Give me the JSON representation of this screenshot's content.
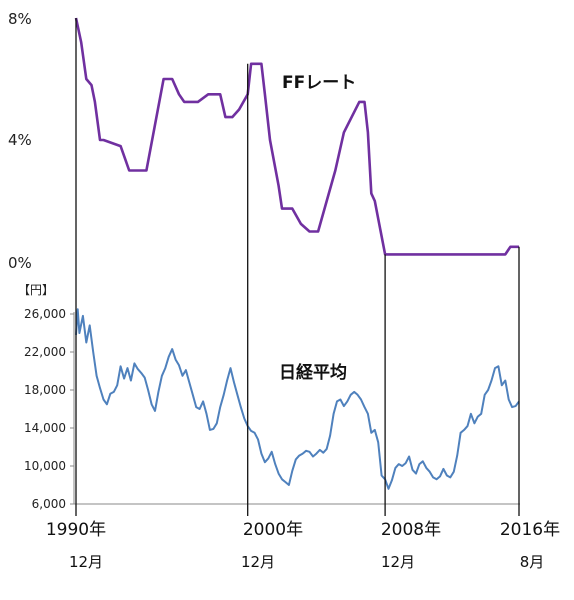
{
  "chart_data": [
    {
      "type": "line",
      "title": "",
      "series_label": "FFレート",
      "y_unit": "%",
      "ylim": [
        0,
        8
      ],
      "yticks": [
        "8%",
        "4%",
        "0%"
      ],
      "ytick_values": [
        8,
        4,
        0
      ],
      "grid": false,
      "color": "#7030a0",
      "series": [
        {
          "x": [
            1990.9,
            1991.2,
            1991.5,
            1991.8,
            1992.0,
            1992.3,
            1992.5,
            1993.5,
            1994.0,
            1994.5,
            1995.0,
            1995.5,
            1996.0,
            1996.5,
            1996.9,
            1997.2,
            1998.0,
            1998.6,
            1998.9,
            1999.3,
            1999.6,
            2000.0,
            2000.4,
            2000.9,
            2001.1,
            2001.4,
            2001.7,
            2001.9,
            2002.2,
            2002.7,
            2002.9,
            2003.5,
            2004.0,
            2004.5,
            2005.0,
            2005.5,
            2006.0,
            2006.5,
            2007.4,
            2007.7,
            2007.9,
            2008.1,
            2008.3,
            2008.9,
            2015.9,
            2016.2,
            2016.7
          ],
          "y": [
            8.0,
            7.2,
            6.0,
            5.8,
            5.25,
            4.0,
            4.0,
            3.8,
            3.0,
            3.0,
            3.0,
            4.5,
            6.0,
            6.0,
            5.5,
            5.25,
            5.25,
            5.5,
            5.5,
            5.5,
            4.75,
            4.75,
            5.0,
            5.5,
            6.5,
            6.5,
            6.5,
            5.5,
            4.0,
            2.5,
            1.75,
            1.75,
            1.25,
            1.0,
            1.0,
            2.0,
            3.0,
            4.25,
            5.25,
            5.25,
            4.25,
            2.25,
            2.0,
            0.25,
            0.25,
            0.5,
            0.5
          ]
        }
      ]
    },
    {
      "type": "line",
      "title": "",
      "series_label": "日経平均",
      "y_unit": "【円】",
      "ylim": [
        6000,
        26000
      ],
      "yticks": [
        "26,000",
        "22,000",
        "18,000",
        "14,000",
        "10,000",
        "6,000"
      ],
      "ytick_values": [
        26000,
        22000,
        18000,
        14000,
        10000,
        6000
      ],
      "grid": false,
      "color": "#4f81bd",
      "series": [
        {
          "x": [
            1990.9,
            1991.0,
            1991.1,
            1991.3,
            1991.5,
            1991.7,
            1991.9,
            1992.1,
            1992.3,
            1992.5,
            1992.7,
            1992.9,
            1993.1,
            1993.3,
            1993.5,
            1993.7,
            1993.9,
            1994.1,
            1994.3,
            1994.5,
            1994.7,
            1994.9,
            1995.1,
            1995.3,
            1995.5,
            1995.7,
            1995.9,
            1996.1,
            1996.3,
            1996.5,
            1996.7,
            1996.9,
            1997.1,
            1997.3,
            1997.5,
            1997.7,
            1997.9,
            1998.1,
            1998.3,
            1998.5,
            1998.7,
            1998.9,
            1999.1,
            1999.3,
            1999.5,
            1999.7,
            1999.9,
            2000.1,
            2000.3,
            2000.5,
            2000.7,
            2000.9,
            2001.1,
            2001.3,
            2001.5,
            2001.7,
            2001.9,
            2002.1,
            2002.3,
            2002.5,
            2002.7,
            2002.9,
            2003.1,
            2003.3,
            2003.5,
            2003.7,
            2003.9,
            2004.1,
            2004.3,
            2004.5,
            2004.7,
            2004.9,
            2005.1,
            2005.3,
            2005.5,
            2005.7,
            2005.9,
            2006.1,
            2006.3,
            2006.5,
            2006.7,
            2006.9,
            2007.1,
            2007.3,
            2007.5,
            2007.7,
            2007.9,
            2008.1,
            2008.3,
            2008.5,
            2008.7,
            2008.9,
            2009.1,
            2009.3,
            2009.5,
            2009.7,
            2009.9,
            2010.1,
            2010.3,
            2010.5,
            2010.7,
            2010.9,
            2011.1,
            2011.3,
            2011.5,
            2011.7,
            2011.9,
            2012.1,
            2012.3,
            2012.5,
            2012.7,
            2012.9,
            2013.1,
            2013.3,
            2013.5,
            2013.7,
            2013.9,
            2014.1,
            2014.3,
            2014.5,
            2014.7,
            2014.9,
            2015.1,
            2015.3,
            2015.5,
            2015.7,
            2015.9,
            2016.1,
            2016.3,
            2016.5,
            2016.7
          ],
          "y": [
            23800,
            26500,
            24000,
            25800,
            23000,
            24800,
            22000,
            19500,
            18200,
            17000,
            16500,
            17600,
            17800,
            18500,
            20500,
            19200,
            20300,
            19000,
            20800,
            20200,
            19800,
            19300,
            18000,
            16500,
            15800,
            17800,
            19500,
            20300,
            21500,
            22300,
            21200,
            20600,
            19500,
            20100,
            18800,
            17500,
            16200,
            16000,
            16800,
            15500,
            13800,
            13900,
            14500,
            16200,
            17500,
            19000,
            20300,
            18800,
            17500,
            16200,
            15000,
            14200,
            13700,
            13500,
            12800,
            11300,
            10400,
            10800,
            11500,
            10200,
            9200,
            8600,
            8300,
            8000,
            9500,
            10700,
            11100,
            11300,
            11600,
            11500,
            11000,
            11300,
            11700,
            11400,
            11800,
            13200,
            15500,
            16800,
            17000,
            16300,
            16800,
            17500,
            17800,
            17500,
            17000,
            16200,
            15500,
            13500,
            13800,
            12500,
            9000,
            8600,
            7600,
            8500,
            9800,
            10200,
            10000,
            10300,
            11000,
            9600,
            9200,
            10200,
            10500,
            9800,
            9400,
            8800,
            8600,
            8900,
            9700,
            9000,
            8800,
            9400,
            11100,
            13500,
            13800,
            14200,
            15500,
            14500,
            15200,
            15500,
            17500,
            18000,
            19000,
            20300,
            20500,
            18500,
            19000,
            17000,
            16200,
            16300,
            16800
          ]
        }
      ]
    }
  ],
  "x_axis": {
    "years": [
      "1990年",
      "2000年",
      "2008年",
      "2016年"
    ],
    "months": [
      "12月",
      "12月",
      "12月",
      "8月"
    ],
    "marker_x": [
      1990.9,
      2000.9,
      2008.9,
      2016.7
    ]
  }
}
